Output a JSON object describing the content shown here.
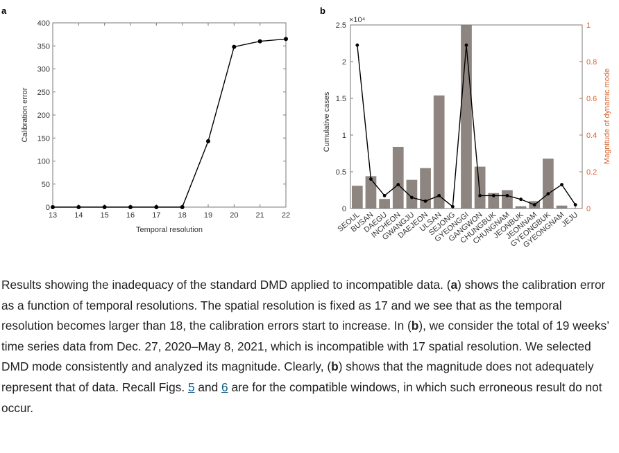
{
  "colors": {
    "line": "#000000",
    "bar": "#8e8580",
    "right_axis": "#d9622b",
    "axis": "#555555",
    "link": "#0c5c8a"
  },
  "chart_data": [
    {
      "panel": "a",
      "type": "line",
      "xlabel": "Temporal resolution",
      "ylabel": "Calibration error",
      "xlim": [
        13,
        22
      ],
      "ylim": [
        0,
        400
      ],
      "xticks": [
        13,
        14,
        15,
        16,
        17,
        18,
        19,
        20,
        21,
        22
      ],
      "yticks": [
        0,
        50,
        100,
        150,
        200,
        250,
        300,
        350,
        400
      ],
      "x": [
        13,
        14,
        15,
        16,
        17,
        18,
        19,
        20,
        21,
        22
      ],
      "y": [
        0,
        0,
        0,
        0,
        0,
        0,
        143,
        348,
        360,
        365
      ],
      "grid": false
    },
    {
      "panel": "b",
      "type": "bar",
      "categories": [
        "SEOUL",
        "BUSAN",
        "DAEGU",
        "INCHEON",
        "GWANGJU",
        "DAEJEON",
        "ULSAN",
        "SEJONG",
        "GYEONGGI",
        "GANGWON",
        "CHUNGBUK",
        "CHUNGNAM",
        "JEONBUK",
        "JEONNAM",
        "GYEONGBUK",
        "GYEONGNAM",
        "JEJU"
      ],
      "ylabel": "Cumulative cases",
      "y_multiplier": "×10⁴",
      "ylim": [
        0,
        2.5
      ],
      "yticks": [
        "0",
        "0.5",
        "1",
        "1.5",
        "2",
        "2.5"
      ],
      "y2label": "Magnitude of dynamic mode",
      "y2lim": [
        0,
        1
      ],
      "y2ticks": [
        "0",
        "0.2",
        "0.4",
        "0.6",
        "0.8",
        "1"
      ],
      "series": [
        {
          "name": "Cumulative cases",
          "type": "bar",
          "axis": "left",
          "values": [
            0.31,
            0.44,
            0.13,
            0.84,
            0.39,
            0.55,
            1.54,
            0.0,
            2.5,
            0.57,
            0.21,
            0.25,
            0.03,
            0.1,
            0.68,
            0.04,
            0.0
          ]
        },
        {
          "name": "Magnitude of dynamic mode",
          "type": "line",
          "axis": "right",
          "values": [
            0.89,
            0.16,
            0.07,
            0.13,
            0.06,
            0.04,
            0.07,
            0.01,
            0.89,
            0.07,
            0.07,
            0.07,
            0.05,
            0.02,
            0.08,
            0.13,
            0.02
          ]
        }
      ]
    }
  ],
  "caption": {
    "intro": "Results showing the inadequacy of the standard DMD applied to incompatible data. (",
    "bold_a1": "a",
    "part2": ") shows the calibration error as a function of temporal resolutions. The spatial resolution is fixed as 17 and we see that as the temporal resolution becomes larger than 18, the calibration errors start to increase. In (",
    "bold_b1": "b",
    "part3": "), we consider the total of 19 weeks’ time series data from Dec. 27, 2020–May 8, 2021, which is incompatible with 17 spatial resolution. We selected DMD mode consistently and analyzed its magnitude. Clearly, (",
    "bold_b2": "b",
    "part4": ") shows that the magnitude does not adequately represent that of data. Recall Figs. ",
    "link1": "5",
    "part5": " and ",
    "link2": "6",
    "part6": " are for the compatible windows, in which such erroneous result do not occur."
  }
}
